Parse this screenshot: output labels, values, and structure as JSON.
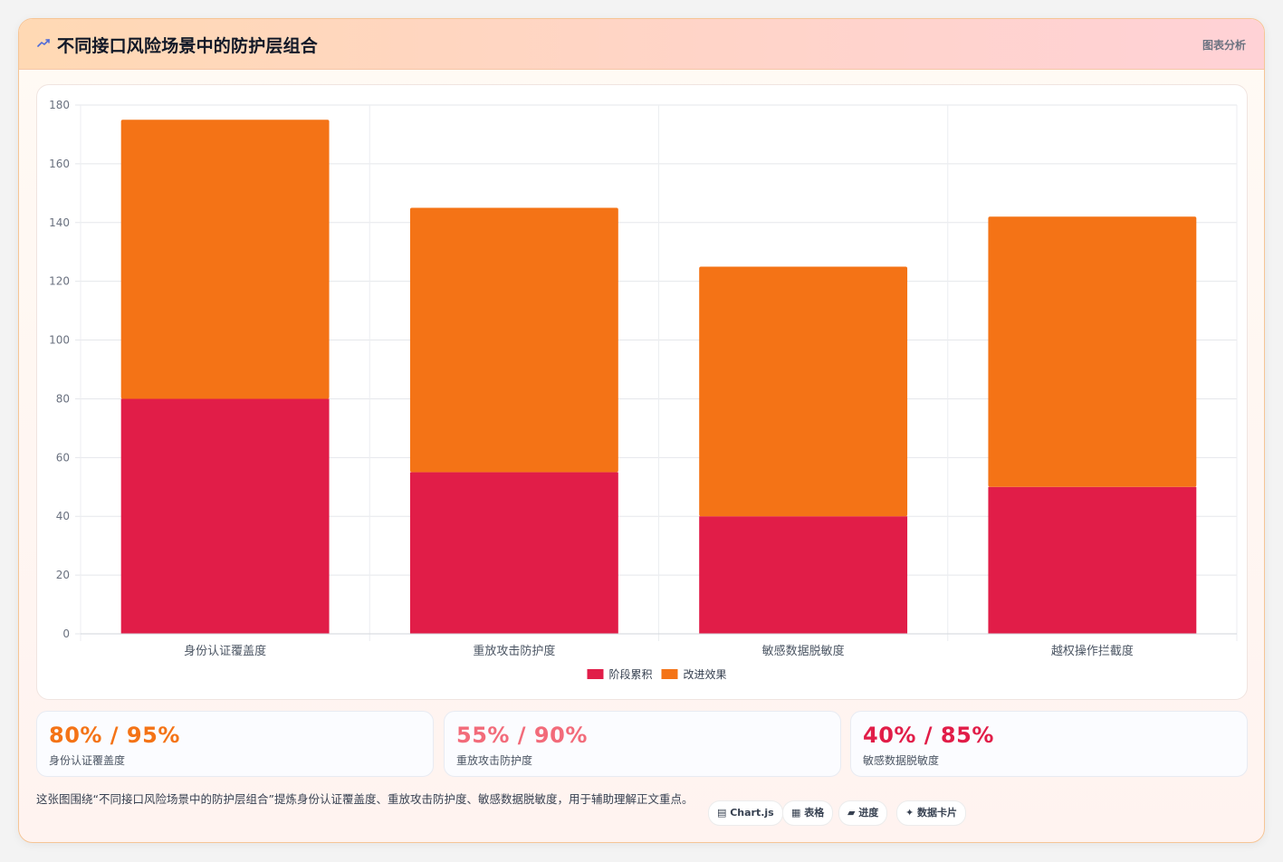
{
  "header": {
    "title": "不同接口风险场景中的防护层组合",
    "tag": "图表分析"
  },
  "colors": {
    "series1": "#e11d48",
    "series2": "#f47316",
    "stat1": "#f47316",
    "stat2": "#f26b7a",
    "stat3": "#e11d48"
  },
  "chart_data": {
    "type": "bar",
    "stacked": true,
    "categories": [
      "身份认证覆盖度",
      "重放攻击防护度",
      "敏感数据脱敏度",
      "越权操作拦截度"
    ],
    "series": [
      {
        "name": "阶段累积",
        "values": [
          80,
          55,
          40,
          50
        ]
      },
      {
        "name": "改进效果",
        "values": [
          95,
          90,
          85,
          92
        ]
      }
    ],
    "ylim": [
      0,
      180
    ],
    "yticks": [
      0,
      20,
      40,
      60,
      80,
      100,
      120,
      140,
      160,
      180
    ],
    "grid": true,
    "legend": "bottom-center"
  },
  "stats": [
    {
      "value": "80% / 95%",
      "label": "身份认证覆盖度"
    },
    {
      "value": "55% / 90%",
      "label": "重放攻击防护度"
    },
    {
      "value": "40% / 85%",
      "label": "敏感数据脱敏度"
    }
  ],
  "footer": {
    "description": "这张图围绕“不同接口风险场景中的防护层组合”提炼身份认证覆盖度、重放攻击防护度、敏感数据脱敏度，用于辅助理解正文重点。",
    "chips": [
      "▤ Chart.js",
      "▦ 表格",
      "▰ 进度",
      "✦ 数据卡片"
    ]
  }
}
